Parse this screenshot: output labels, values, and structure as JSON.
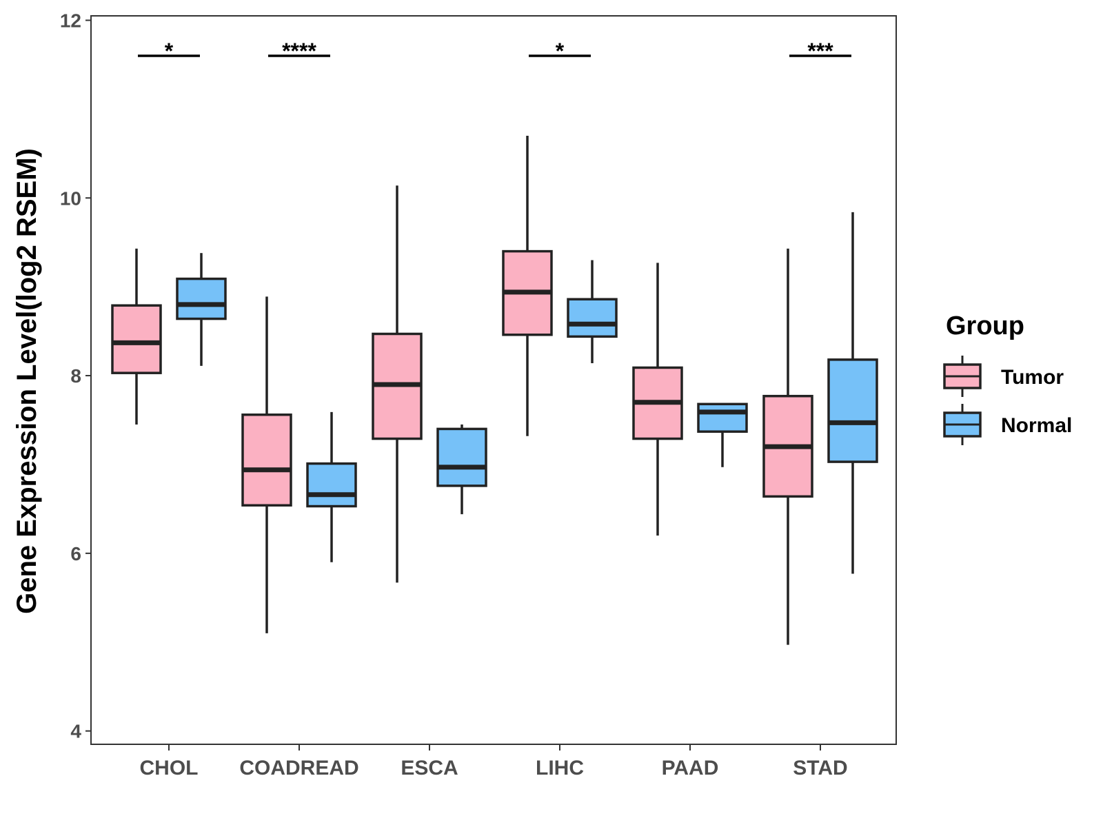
{
  "chart_data": {
    "type": "boxplot",
    "ylabel": "Gene Expression Level(log2 RSEM)",
    "xlabel": "",
    "ylim": [
      3.85,
      12.05
    ],
    "yticks": [
      4,
      6,
      8,
      10,
      12
    ],
    "categories": [
      "CHOL",
      "COADREAD",
      "ESCA",
      "LIHC",
      "PAAD",
      "STAD"
    ],
    "legend": {
      "title": "Group",
      "position": "right",
      "entries": [
        "Tumor",
        "Normal"
      ]
    },
    "colors": {
      "Tumor": "#fbb1c2",
      "Normal": "#76c1f8",
      "outline": "#222222",
      "axis": "#333333"
    },
    "series": [
      {
        "name": "Tumor",
        "boxes": [
          {
            "whisker_low": 7.45,
            "q1": 8.03,
            "median": 8.37,
            "q3": 8.79,
            "whisker_high": 9.43
          },
          {
            "whisker_low": 5.1,
            "q1": 6.54,
            "median": 6.94,
            "q3": 7.56,
            "whisker_high": 8.89
          },
          {
            "whisker_low": 5.67,
            "q1": 7.29,
            "median": 7.9,
            "q3": 8.47,
            "whisker_high": 10.14
          },
          {
            "whisker_low": 7.32,
            "q1": 8.46,
            "median": 8.94,
            "q3": 9.4,
            "whisker_high": 10.7
          },
          {
            "whisker_low": 6.2,
            "q1": 7.29,
            "median": 7.7,
            "q3": 8.09,
            "whisker_high": 9.27
          },
          {
            "whisker_low": 4.97,
            "q1": 6.64,
            "median": 7.2,
            "q3": 7.77,
            "whisker_high": 9.43
          }
        ]
      },
      {
        "name": "Normal",
        "boxes": [
          {
            "whisker_low": 8.11,
            "q1": 8.64,
            "median": 8.8,
            "q3": 9.09,
            "whisker_high": 9.38
          },
          {
            "whisker_low": 5.9,
            "q1": 6.53,
            "median": 6.66,
            "q3": 7.01,
            "whisker_high": 7.59
          },
          {
            "whisker_low": 6.44,
            "q1": 6.76,
            "median": 6.97,
            "q3": 7.4,
            "whisker_high": 7.45
          },
          {
            "whisker_low": 8.14,
            "q1": 8.44,
            "median": 8.58,
            "q3": 8.86,
            "whisker_high": 9.3
          },
          {
            "whisker_low": 6.97,
            "q1": 7.37,
            "median": 7.59,
            "q3": 7.68,
            "whisker_high": 7.68
          },
          {
            "whisker_low": 5.77,
            "q1": 7.03,
            "median": 7.47,
            "q3": 8.18,
            "whisker_high": 9.84
          }
        ]
      }
    ],
    "significance": [
      {
        "category": "CHOL",
        "label": "*",
        "y": 11.6
      },
      {
        "category": "COADREAD",
        "label": "****",
        "y": 11.6
      },
      {
        "category": "LIHC",
        "label": "*",
        "y": 11.6
      },
      {
        "category": "STAD",
        "label": "***",
        "y": 11.6
      }
    ]
  }
}
